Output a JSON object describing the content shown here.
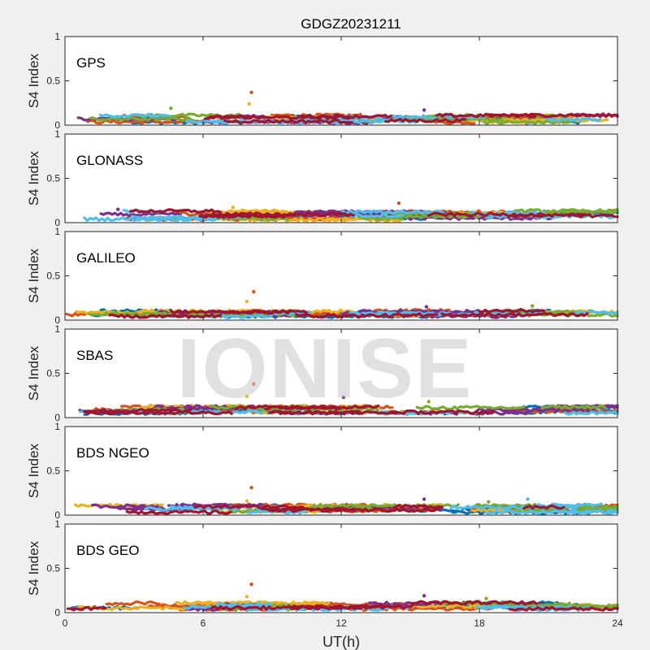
{
  "figure": {
    "title": "GDGZ20231211",
    "xlabel": "UT(h)",
    "watermark": "IONISE"
  },
  "colors": {
    "series": [
      "#0072BD",
      "#D95319",
      "#EDB120",
      "#7E2F8E",
      "#77AC30",
      "#4DBEEE",
      "#A2142F"
    ],
    "axis": "#262626",
    "panel_bg": "#ffffff",
    "figure_bg": "#f0f0f0"
  },
  "chart_data": [
    {
      "type": "scatter",
      "label": "GPS",
      "ylabel": "S4 Index",
      "xlim": [
        0,
        24
      ],
      "ylim": [
        0,
        1
      ],
      "xticks": [
        "0",
        "6",
        "12",
        "18",
        "24"
      ],
      "yticks": [
        "0",
        "0.5",
        "1"
      ],
      "grid": false,
      "baseline_range": [
        0.03,
        0.14
      ],
      "spikes": [
        {
          "x": 8.1,
          "y": 0.37
        },
        {
          "x": 8.0,
          "y": 0.24
        },
        {
          "x": 15.6,
          "y": 0.17
        },
        {
          "x": 4.6,
          "y": 0.19
        }
      ]
    },
    {
      "type": "scatter",
      "label": "GLONASS",
      "ylabel": "S4 Index",
      "xlim": [
        0,
        24
      ],
      "ylim": [
        0,
        1
      ],
      "xticks": [
        "0",
        "6",
        "12",
        "18",
        "24"
      ],
      "yticks": [
        "0",
        "0.5",
        "1"
      ],
      "grid": false,
      "baseline_range": [
        0.03,
        0.17
      ],
      "spikes": [
        {
          "x": 14.5,
          "y": 0.22
        },
        {
          "x": 7.3,
          "y": 0.17
        },
        {
          "x": 2.3,
          "y": 0.15
        }
      ]
    },
    {
      "type": "scatter",
      "label": "GALILEO",
      "ylabel": "S4 Index",
      "xlim": [
        0,
        24
      ],
      "ylim": [
        0,
        1
      ],
      "xticks": [
        "0",
        "6",
        "12",
        "18",
        "24"
      ],
      "yticks": [
        "0",
        "0.5",
        "1"
      ],
      "grid": false,
      "baseline_range": [
        0.04,
        0.13
      ],
      "spikes": [
        {
          "x": 8.2,
          "y": 0.32
        },
        {
          "x": 7.9,
          "y": 0.21
        },
        {
          "x": 15.7,
          "y": 0.15
        },
        {
          "x": 20.3,
          "y": 0.16
        }
      ]
    },
    {
      "type": "scatter",
      "label": "SBAS",
      "ylabel": "S4 Index",
      "xlim": [
        0,
        24
      ],
      "ylim": [
        0,
        1
      ],
      "xticks": [
        "0",
        "6",
        "12",
        "18",
        "24"
      ],
      "yticks": [
        "0",
        "0.5",
        "1"
      ],
      "grid": false,
      "baseline_range": [
        0.05,
        0.15
      ],
      "spikes": [
        {
          "x": 8.2,
          "y": 0.38
        },
        {
          "x": 7.9,
          "y": 0.24
        },
        {
          "x": 12.1,
          "y": 0.23
        },
        {
          "x": 15.8,
          "y": 0.18
        }
      ]
    },
    {
      "type": "scatter",
      "label": "BDS NGEO",
      "ylabel": "S4 Index",
      "xlim": [
        0,
        24
      ],
      "ylim": [
        0,
        1
      ],
      "xticks": [
        "0",
        "6",
        "12",
        "18",
        "24"
      ],
      "yticks": [
        "0",
        "0.5",
        "1"
      ],
      "grid": false,
      "baseline_range": [
        0.03,
        0.14
      ],
      "spikes": [
        {
          "x": 8.1,
          "y": 0.31
        },
        {
          "x": 7.9,
          "y": 0.16
        },
        {
          "x": 15.6,
          "y": 0.18
        },
        {
          "x": 18.4,
          "y": 0.15
        },
        {
          "x": 20.1,
          "y": 0.18
        }
      ]
    },
    {
      "type": "scatter",
      "label": "BDS GEO",
      "ylabel": "S4 Index",
      "xlim": [
        0,
        24
      ],
      "ylim": [
        0,
        1
      ],
      "xticks": [
        "0",
        "6",
        "12",
        "18",
        "24"
      ],
      "yticks": [
        "0",
        "0.5",
        "1"
      ],
      "grid": false,
      "baseline_range": [
        0.04,
        0.14
      ],
      "spikes": [
        {
          "x": 8.1,
          "y": 0.32
        },
        {
          "x": 7.9,
          "y": 0.18
        },
        {
          "x": 15.6,
          "y": 0.19
        },
        {
          "x": 18.3,
          "y": 0.16
        }
      ]
    }
  ]
}
